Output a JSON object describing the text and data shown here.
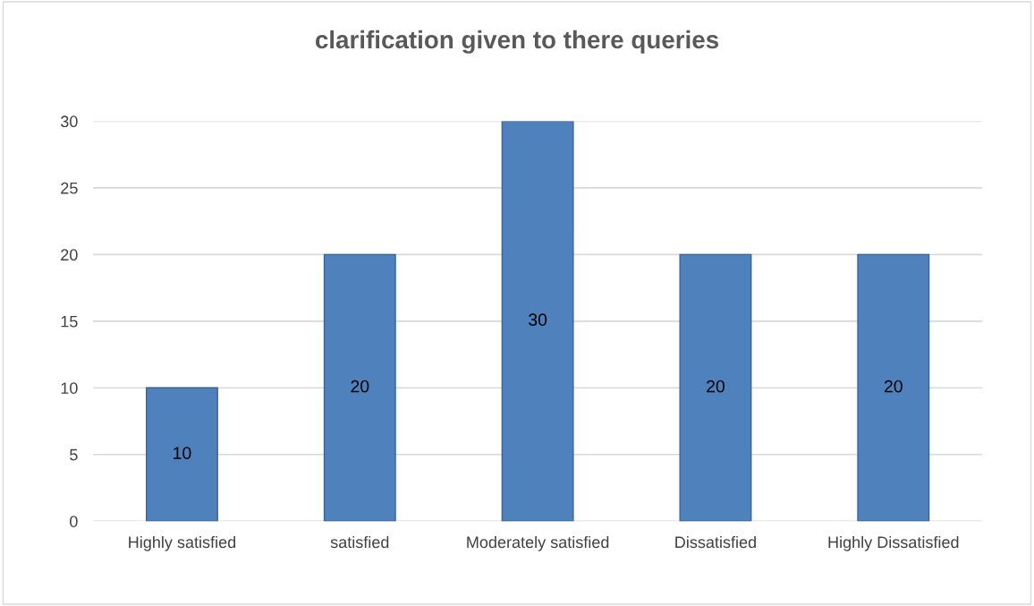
{
  "chart_data": {
    "type": "bar",
    "title": "clarification given to there queries",
    "categories": [
      "Highly satisfied",
      "satisfied",
      "Moderately satisfied",
      "Dissatisfied",
      "Highly Dissatisfied"
    ],
    "values": [
      10,
      20,
      30,
      20,
      20
    ],
    "color": "#4f81bd",
    "ylim": [
      0,
      30
    ],
    "yticks": [
      0,
      5,
      10,
      15,
      20,
      25,
      30
    ],
    "grid": "y",
    "data_labels": true,
    "legend": false
  }
}
